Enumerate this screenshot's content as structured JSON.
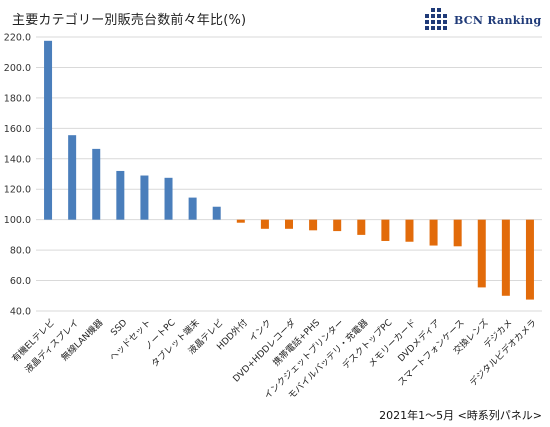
{
  "header": {
    "title": "主要カテゴリー別販売台数前々年比(%)",
    "logo_text": "BCN Ranking"
  },
  "footer": {
    "note": "2021年1〜5月 <時系列パネル>"
  },
  "colors": {
    "above": "#4a7ebb",
    "below": "#e26b0a",
    "grid": "#d9d9d9",
    "logo": "#1f3a78"
  },
  "chart_data": {
    "type": "bar",
    "title": "主要カテゴリー別販売台数前々年比(%)",
    "xlabel": "",
    "ylabel": "",
    "ylim": [
      40,
      220
    ],
    "yticks": [
      "40.0",
      "60.0",
      "80.0",
      "100.0",
      "120.0",
      "140.0",
      "160.0",
      "180.0",
      "200.0",
      "220.0"
    ],
    "baseline": 100,
    "grid": true,
    "categories": [
      "有機ELテレビ",
      "液晶ディスプレイ",
      "無線LAN機器",
      "SSD",
      "ヘッドセット",
      "ノートPC",
      "タブレット端末",
      "液晶テレビ",
      "HDD外付",
      "インク",
      "DVD+HDDレコーダ",
      "携帯電話+PHS",
      "インクジェットプリンター",
      "モバイルバッテリ・充電器",
      "デスクトップPC",
      "メモリーカード",
      "DVDメディア",
      "スマートフォンケース",
      "交換レンズ",
      "デジカメ",
      "デジタルビデオカメラ"
    ],
    "values": [
      217.5,
      155.5,
      146.5,
      132,
      129,
      127.5,
      114.5,
      108.5,
      98,
      94,
      94,
      93,
      92.5,
      90,
      86,
      85.5,
      83,
      82.5,
      55.5,
      50,
      47.5
    ]
  }
}
